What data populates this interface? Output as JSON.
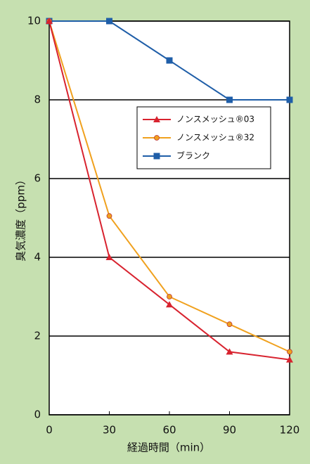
{
  "chart_data": {
    "type": "line",
    "x_label": "経過時間（min）",
    "y_label": "臭気濃度（ppm）",
    "x": [
      0,
      30,
      60,
      90,
      120
    ],
    "xlim": [
      0,
      120
    ],
    "xticks": [
      0,
      30,
      60,
      90,
      120
    ],
    "ylim": [
      0,
      10
    ],
    "yticks": [
      0,
      2,
      4,
      6,
      8,
      10
    ],
    "grid": true,
    "legend": "upper right",
    "series": [
      {
        "name": "ノンスメッシュ®03",
        "color": "#d8232f",
        "marker": "triangle",
        "values": [
          10,
          4.0,
          2.8,
          1.6,
          1.4
        ]
      },
      {
        "name": "ノンスメッシュ®32",
        "color": "#f0a11e",
        "marker": "circle",
        "values": [
          10,
          5.05,
          3.0,
          2.3,
          1.6
        ]
      },
      {
        "name": "ブランク",
        "color": "#1f5ea8",
        "marker": "square",
        "values": [
          10,
          10,
          9.0,
          8.0,
          8.0
        ]
      }
    ]
  }
}
